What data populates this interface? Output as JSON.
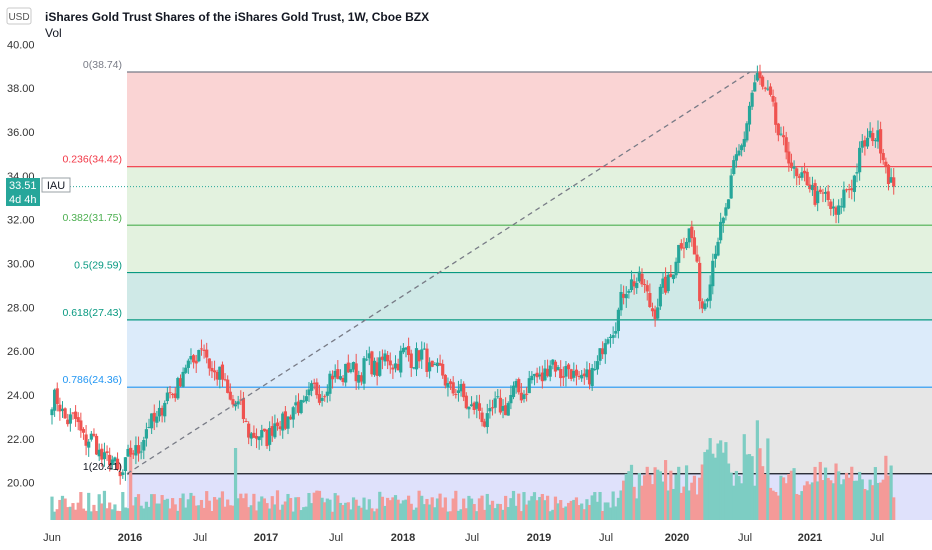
{
  "header": {
    "currency": "USD",
    "title": "iShares Gold Trust Shares of the iShares Gold Trust, 1W, Cboe BZX",
    "volume_label": "Vol"
  },
  "price_badge": {
    "price": "33.51",
    "countdown": "4d 4h",
    "symbol": "IAU"
  },
  "colors": {
    "up": "#26a69a",
    "down": "#ef5350",
    "vol_up": "#7dcdc3",
    "vol_down": "#f49a98",
    "badge": "#26a69a"
  },
  "chart_data": {
    "type": "candlestick",
    "title": "iShares Gold Trust Shares of the iShares Gold Trust, 1W, Cboe BZX",
    "y_axis": {
      "ticks": [
        "20.00",
        "22.00",
        "24.00",
        "26.00",
        "28.00",
        "30.00",
        "32.00",
        "34.00",
        "36.00",
        "38.00",
        "40.00"
      ],
      "range": [
        18.3,
        40.2
      ]
    },
    "x_axis": {
      "ticks": [
        "Jun",
        "2016",
        "Jul",
        "2017",
        "Jul",
        "2018",
        "Jul",
        "2019",
        "Jul",
        "2020",
        "Jul",
        "2021",
        "Jul"
      ]
    },
    "fibonacci": [
      {
        "label": "0(38.74)",
        "value": 38.74,
        "color": "#787b86",
        "fill": "#fad4d4"
      },
      {
        "label": "0.236(34.42)",
        "value": 34.42,
        "color": "#f23645",
        "fill": "#e3f2df"
      },
      {
        "label": "0.382(31.75)",
        "value": 31.75,
        "color": "#4caf50",
        "fill": "#e3f2df"
      },
      {
        "label": "0.5(29.59)",
        "value": 29.59,
        "color": "#089981",
        "fill": "#cfe9e7"
      },
      {
        "label": "0.618(27.43)",
        "value": 27.43,
        "color": "#089981",
        "fill": "#dcebfa"
      },
      {
        "label": "0.786(24.36)",
        "value": 24.36,
        "color": "#2196f3",
        "fill": "#e6e6e6"
      },
      {
        "label": "1(20.41)",
        "value": 20.41,
        "color": "#131722",
        "fill": "#dfe1fb"
      }
    ],
    "trendline": {
      "from": {
        "x": "2016",
        "y": 20.41
      },
      "to": {
        "x": "Jul 2020",
        "y": 38.74
      }
    },
    "last_price": 33.51,
    "key_points": [
      {
        "x": "Jun 2015",
        "y": 23.8
      },
      {
        "x": "Dec 2015",
        "y": 20.41
      },
      {
        "x": "Jul 2016",
        "y": 26.2
      },
      {
        "x": "Dec 2016",
        "y": 21.9
      },
      {
        "x": "Jul 2017",
        "y": 24.9
      },
      {
        "x": "Feb 2018",
        "y": 25.9
      },
      {
        "x": "Aug 2018",
        "y": 22.9
      },
      {
        "x": "Feb 2019",
        "y": 25.4
      },
      {
        "x": "May 2019",
        "y": 24.5
      },
      {
        "x": "Sep 2019",
        "y": 29.5
      },
      {
        "x": "Nov 2019",
        "y": 27.9
      },
      {
        "x": "Feb 2020",
        "y": 31.8
      },
      {
        "x": "Mar 2020",
        "y": 27.9
      },
      {
        "x": "Aug 2020",
        "y": 38.74
      },
      {
        "x": "Nov 2020",
        "y": 34.2
      },
      {
        "x": "Mar 2021",
        "y": 32.3
      },
      {
        "x": "Jun 2021",
        "y": 36.2
      },
      {
        "x": "Aug 2021",
        "y": 33.51
      }
    ]
  }
}
